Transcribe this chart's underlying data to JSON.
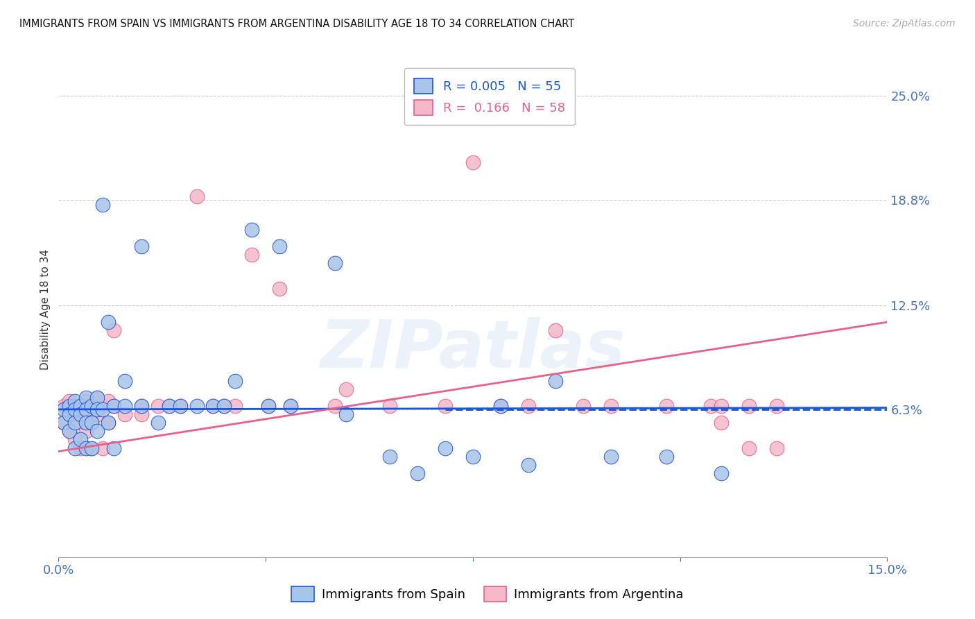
{
  "title": "IMMIGRANTS FROM SPAIN VS IMMIGRANTS FROM ARGENTINA DISABILITY AGE 18 TO 34 CORRELATION CHART",
  "source": "Source: ZipAtlas.com",
  "ylabel": "Disability Age 18 to 34",
  "ytick_labels": [
    "25.0%",
    "18.8%",
    "12.5%",
    "6.3%"
  ],
  "ytick_values": [
    0.25,
    0.188,
    0.125,
    0.063
  ],
  "xmin": 0.0,
  "xmax": 0.15,
  "ymin": -0.025,
  "ymax": 0.27,
  "color_spain": "#a8c4e8",
  "color_argentina": "#f4b8c8",
  "line_spain": "#1a56db",
  "line_argentina": "#e8608a",
  "legend_R_spain": "0.005",
  "legend_N_spain": "55",
  "legend_R_argentina": "0.166",
  "legend_N_argentina": "58",
  "watermark": "ZIPatlas",
  "spain_x": [
    0.001,
    0.001,
    0.002,
    0.002,
    0.002,
    0.003,
    0.003,
    0.003,
    0.003,
    0.004,
    0.004,
    0.004,
    0.005,
    0.005,
    0.005,
    0.005,
    0.006,
    0.006,
    0.006,
    0.007,
    0.007,
    0.007,
    0.008,
    0.008,
    0.009,
    0.009,
    0.01,
    0.01,
    0.012,
    0.012,
    0.015,
    0.015,
    0.018,
    0.02,
    0.022,
    0.025,
    0.028,
    0.03,
    0.032,
    0.035,
    0.038,
    0.04,
    0.042,
    0.05,
    0.052,
    0.06,
    0.065,
    0.07,
    0.075,
    0.08,
    0.085,
    0.09,
    0.1,
    0.11,
    0.12
  ],
  "spain_y": [
    0.063,
    0.055,
    0.065,
    0.06,
    0.05,
    0.068,
    0.063,
    0.055,
    0.04,
    0.065,
    0.06,
    0.045,
    0.07,
    0.063,
    0.055,
    0.04,
    0.065,
    0.055,
    0.04,
    0.07,
    0.063,
    0.05,
    0.185,
    0.063,
    0.115,
    0.055,
    0.065,
    0.04,
    0.08,
    0.065,
    0.16,
    0.065,
    0.055,
    0.065,
    0.065,
    0.065,
    0.065,
    0.065,
    0.08,
    0.17,
    0.065,
    0.16,
    0.065,
    0.15,
    0.06,
    0.035,
    0.025,
    0.04,
    0.035,
    0.065,
    0.03,
    0.08,
    0.035,
    0.035,
    0.025
  ],
  "argentina_x": [
    0.001,
    0.001,
    0.002,
    0.002,
    0.002,
    0.003,
    0.003,
    0.003,
    0.004,
    0.004,
    0.004,
    0.005,
    0.005,
    0.005,
    0.006,
    0.006,
    0.006,
    0.007,
    0.007,
    0.008,
    0.008,
    0.009,
    0.009,
    0.01,
    0.01,
    0.012,
    0.015,
    0.015,
    0.018,
    0.02,
    0.022,
    0.025,
    0.028,
    0.03,
    0.032,
    0.035,
    0.038,
    0.04,
    0.042,
    0.05,
    0.052,
    0.06,
    0.065,
    0.07,
    0.075,
    0.08,
    0.085,
    0.09,
    0.095,
    0.1,
    0.11,
    0.12,
    0.125,
    0.13,
    0.118,
    0.12,
    0.125,
    0.13
  ],
  "argentina_y": [
    0.065,
    0.055,
    0.068,
    0.063,
    0.05,
    0.065,
    0.06,
    0.045,
    0.065,
    0.055,
    0.04,
    0.068,
    0.063,
    0.05,
    0.065,
    0.055,
    0.04,
    0.07,
    0.06,
    0.065,
    0.04,
    0.068,
    0.055,
    0.11,
    0.065,
    0.06,
    0.065,
    0.06,
    0.065,
    0.065,
    0.065,
    0.19,
    0.065,
    0.065,
    0.065,
    0.155,
    0.065,
    0.135,
    0.065,
    0.065,
    0.075,
    0.065,
    0.24,
    0.065,
    0.21,
    0.065,
    0.065,
    0.11,
    0.065,
    0.065,
    0.065,
    0.055,
    0.065,
    0.065,
    0.065,
    0.065,
    0.04,
    0.04
  ],
  "spain_line_x": [
    0.0,
    0.15
  ],
  "spain_line_y": [
    0.063,
    0.064
  ],
  "argentina_line_x": [
    0.0,
    0.15
  ],
  "argentina_line_y": [
    0.038,
    0.115
  ]
}
